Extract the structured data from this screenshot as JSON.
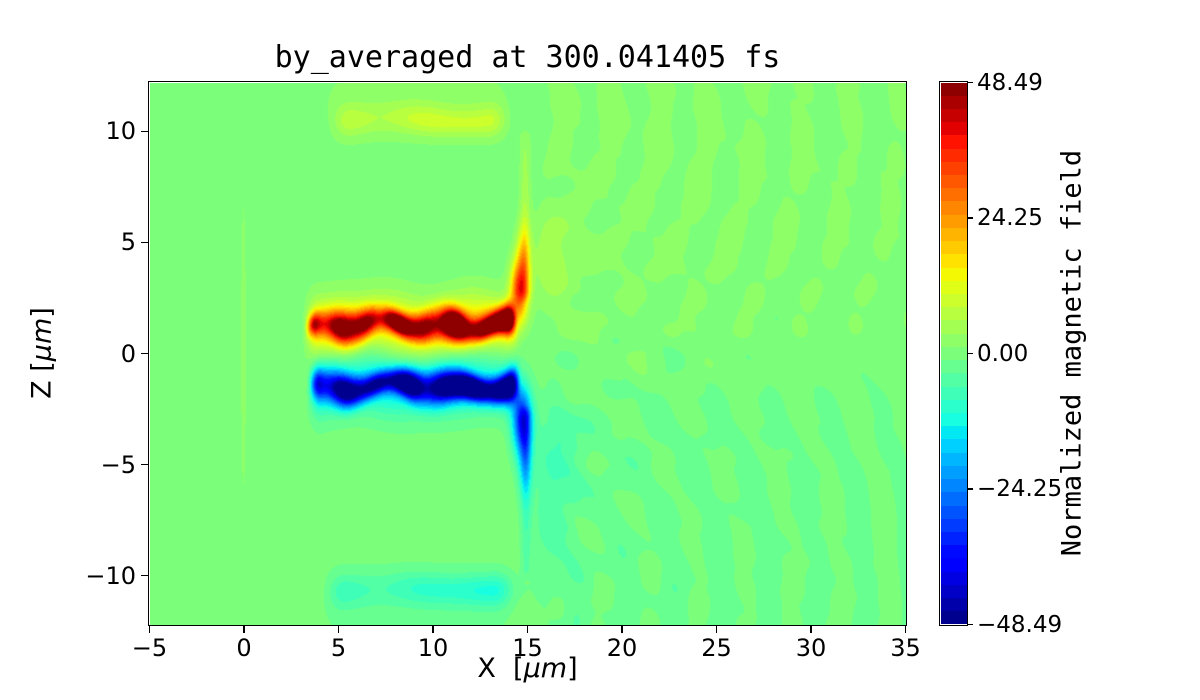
{
  "chart_data": {
    "type": "heatmap",
    "title": "by_averaged at 300.041405 fs",
    "xlabel": {
      "pre": "X  [",
      "mu": "μm",
      "post": "]"
    },
    "ylabel": {
      "pre": "Z  [",
      "mu": "μm",
      "post": "]"
    },
    "xlim": [
      -5,
      35
    ],
    "zlim": [
      -12.2,
      12.2
    ],
    "clim": [
      -48.49,
      48.49
    ],
    "n_levels": 41,
    "colormap": "jet",
    "grid": false,
    "x_ticks": [
      {
        "v": -5,
        "label": "−5"
      },
      {
        "v": 0,
        "label": "0"
      },
      {
        "v": 5,
        "label": "5"
      },
      {
        "v": 10,
        "label": "10"
      },
      {
        "v": 15,
        "label": "15"
      },
      {
        "v": 20,
        "label": "20"
      },
      {
        "v": 25,
        "label": "25"
      },
      {
        "v": 30,
        "label": "30"
      },
      {
        "v": 35,
        "label": "35"
      }
    ],
    "z_ticks": [
      {
        "v": 10,
        "label": "10"
      },
      {
        "v": 5,
        "label": "5"
      },
      {
        "v": 0,
        "label": "0"
      },
      {
        "v": -5,
        "label": "−5"
      },
      {
        "v": -10,
        "label": "−10"
      }
    ],
    "colorbar": {
      "label": "Normalized magnetic field",
      "ticks": [
        {
          "v": 48.49,
          "label": "48.49"
        },
        {
          "v": 24.25,
          "label": "24.25"
        },
        {
          "v": 0,
          "label": "0.00"
        },
        {
          "v": -24.25,
          "label": "−24.25"
        },
        {
          "v": -48.49,
          "label": "−48.49"
        }
      ]
    },
    "field_model": {
      "units": "micron",
      "features": [
        {
          "t": "band",
          "amp": 44,
          "zc": 1.3,
          "w": 0.6,
          "x0": 3.1,
          "x1": 14.55,
          "soft": 0.7,
          "gain": [
            0.8,
            1.18
          ],
          "zwig": [
            [
              0.18,
              1.9,
              0.3
            ],
            [
              0.12,
              0.8,
              2.0
            ]
          ],
          "awig": [
            [
              0.2,
              2.3,
              1.2
            ],
            [
              0.12,
              4.1,
              0.0
            ]
          ],
          "wwig": [
            [
              0.12,
              1.3,
              0.7
            ]
          ]
        },
        {
          "t": "band",
          "amp": 13,
          "zc": 1.25,
          "w": 1.35,
          "x0": 2.9,
          "x1": 14.8,
          "soft": 1.0,
          "gain": [
            1,
            1
          ],
          "zwig": [
            [
              0.15,
              1.1,
              0.5
            ]
          ],
          "awig": [
            [
              0.15,
              1.7,
              0.4
            ]
          ],
          "wwig": []
        },
        {
          "t": "band",
          "amp": -44,
          "zc": -1.45,
          "w": 0.6,
          "x0": 3.3,
          "x1": 14.7,
          "soft": 0.7,
          "gain": [
            0.8,
            1.18
          ],
          "zwig": [
            [
              0.16,
              1.7,
              1.1
            ],
            [
              0.12,
              0.9,
              0.2
            ]
          ],
          "awig": [
            [
              0.2,
              2.1,
              2.4
            ],
            [
              0.12,
              3.7,
              1.0
            ]
          ],
          "wwig": [
            [
              0.12,
              1.2,
              2.2
            ]
          ]
        },
        {
          "t": "band",
          "amp": -13,
          "zc": -1.4,
          "w": 1.35,
          "x0": 3.1,
          "x1": 14.9,
          "soft": 1.0,
          "gain": [
            1,
            1
          ],
          "zwig": [
            [
              0.15,
              1.0,
              1.8
            ]
          ],
          "awig": [
            [
              0.15,
              1.6,
              2.2
            ]
          ],
          "wwig": []
        },
        {
          "t": "band",
          "amp": 5.2,
          "zc": 10.55,
          "w": 0.7,
          "x0": 4.3,
          "x1": 14.3,
          "soft": 1.4,
          "gain": [
            1,
            1
          ],
          "zwig": [
            [
              0.08,
              0.9,
              0.4
            ]
          ],
          "awig": [
            [
              0.25,
              1.5,
              0.2
            ]
          ],
          "wwig": []
        },
        {
          "t": "band",
          "amp": 2.2,
          "zc": 11.1,
          "w": 1.5,
          "x0": 3.6,
          "x1": 14.6,
          "soft": 1.6,
          "gain": [
            1,
            1
          ],
          "zwig": [],
          "awig": [],
          "wwig": []
        },
        {
          "t": "band",
          "amp": -5.0,
          "zc": -10.6,
          "w": 0.75,
          "x0": 4.0,
          "x1": 14.6,
          "soft": 1.4,
          "gain": [
            1,
            1
          ],
          "zwig": [
            [
              0.08,
              0.8,
              1.3
            ]
          ],
          "awig": [
            [
              0.25,
              1.4,
              1.1
            ]
          ],
          "wwig": []
        },
        {
          "t": "band",
          "amp": -2.2,
          "zc": -11.15,
          "w": 1.6,
          "x0": 3.5,
          "x1": 14.8,
          "soft": 1.6,
          "gain": [
            1,
            1
          ],
          "zwig": [],
          "awig": [],
          "wwig": []
        },
        {
          "t": "spot",
          "amp": 14,
          "x": 13.35,
          "z": 1.55,
          "sx": 0.95,
          "sz": 0.6
        },
        {
          "t": "spot",
          "amp": 9,
          "x": 11.3,
          "z": 1.65,
          "sx": 0.55,
          "sz": 0.5
        },
        {
          "t": "spot",
          "amp": -14,
          "x": 12.9,
          "z": -1.7,
          "sx": 1.0,
          "sz": 0.6
        },
        {
          "t": "spot",
          "amp": -9,
          "x": 11.0,
          "z": -1.55,
          "sx": 0.55,
          "sz": 0.5
        },
        {
          "t": "spot",
          "amp": 34,
          "x": 14.55,
          "z": 2.9,
          "sx": 0.45,
          "sz": 1.3
        },
        {
          "t": "spot",
          "amp": 12,
          "x": 14.75,
          "z": 4.5,
          "sx": 0.35,
          "sz": 1.3
        },
        {
          "t": "spot",
          "amp": -34,
          "x": 14.7,
          "z": -3.0,
          "sx": 0.5,
          "sz": 1.5
        },
        {
          "t": "spot",
          "amp": -12,
          "x": 14.85,
          "z": -5.0,
          "sx": 0.35,
          "sz": 1.5
        },
        {
          "t": "spot",
          "amp": 4.5,
          "x": 16.2,
          "z": 4.3,
          "sx": 1.2,
          "sz": 1.9
        },
        {
          "t": "spot",
          "amp": -4.5,
          "x": 16.4,
          "z": -4.6,
          "sx": 1.3,
          "sz": 2.3
        },
        {
          "t": "spot",
          "amp": -3.0,
          "x": 16.1,
          "z": -8.0,
          "sx": 1.1,
          "sz": 2.2
        },
        {
          "t": "spot",
          "amp": 3.5,
          "x": 11.2,
          "z": 10.35,
          "sx": 1.8,
          "sz": 0.55
        },
        {
          "t": "spot",
          "amp": -4.5,
          "x": 12.2,
          "z": -10.6,
          "sx": 2.2,
          "sz": 0.7
        },
        {
          "t": "spot",
          "amp": 2.6,
          "x": -0.05,
          "z": 0.3,
          "sx": 0.14,
          "sz": 7.0
        },
        {
          "t": "vseg",
          "x": 14.85,
          "sx": 0.27,
          "z0": 2.2,
          "z1": 10.3,
          "a0": 8.5,
          "a1": 2.8
        },
        {
          "t": "vseg",
          "x": 14.9,
          "sx": 0.27,
          "z0": -10.3,
          "z1": -2.2,
          "a0": -3.0,
          "a1": -8.5
        },
        {
          "t": "ambient",
          "xstart": 14.9,
          "soft": 1.8,
          "zscale": 2.6,
          "ampUp": 1.55,
          "ampDn": 1.9,
          "xdecay": 40
        },
        {
          "t": "ripple",
          "cx": 14.2,
          "cz": 10.8,
          "k": 2.5,
          "amp": 1.35,
          "ph": 0.8,
          "xstart": 15.0,
          "soft": 2.5,
          "side": 1,
          "decay": 26,
          "mod": [
            0.55,
            1.9,
            2.7
          ]
        },
        {
          "t": "ripple",
          "cx": 14.2,
          "cz": -10.8,
          "k": 2.5,
          "amp": 1.45,
          "ph": 2.1,
          "xstart": 15.0,
          "soft": 2.5,
          "side": -1,
          "decay": 26,
          "mod": [
            0.55,
            1.7,
            2.9
          ]
        },
        {
          "t": "ripple",
          "cx": 15.2,
          "cz": 0.0,
          "k": 2.2,
          "amp": 0.9,
          "ph": 1.3,
          "xstart": 15.5,
          "soft": 2.0,
          "side": 0,
          "decay": 14,
          "mod": [
            0.6,
            2.3,
            3.1
          ]
        }
      ]
    }
  }
}
